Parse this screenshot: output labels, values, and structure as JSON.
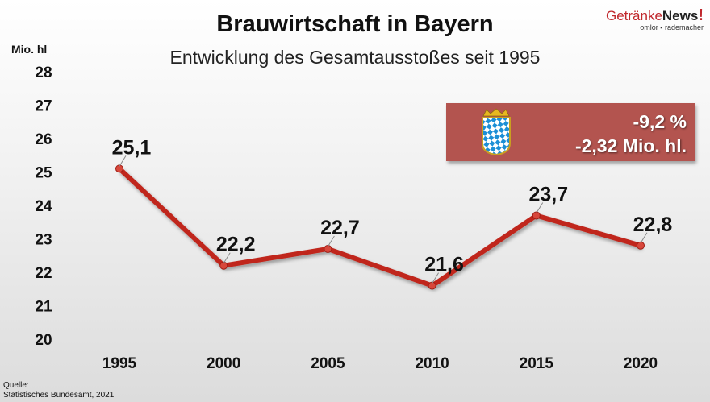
{
  "header": {
    "title": "Brauwirtschaft in Bayern",
    "subtitle": "Entwicklung des Gesamtausstoßes seit 1995"
  },
  "logo": {
    "brand_a": "Getränke",
    "brand_b": "News",
    "brand_c": "!",
    "tagline": "omlor ▪ rademacher"
  },
  "summary": {
    "percent": "-9,2 %",
    "absolute": "-2,32 Mio. hl.",
    "icon": "bavaria-coat-of-arms-icon",
    "color": "#b3544f"
  },
  "source": {
    "label": "Quelle:",
    "text": "Statistisches Bundesamt, 2021"
  },
  "chart_data": {
    "type": "line",
    "title": "Brauwirtschaft in Bayern",
    "subtitle": "Entwicklung des Gesamtausstoßes seit 1995",
    "ylabel": "Mio. hl",
    "categories": [
      "1995",
      "2000",
      "2005",
      "2010",
      "2015",
      "2020"
    ],
    "values": [
      25.1,
      22.2,
      22.7,
      21.6,
      23.7,
      22.8
    ],
    "data_labels": [
      "25,1",
      "22,2",
      "22,7",
      "21,6",
      "23,7",
      "22,8"
    ],
    "ylim": [
      20,
      28
    ],
    "yticks": [
      "20",
      "21",
      "22",
      "23",
      "24",
      "25",
      "26",
      "27",
      "28"
    ],
    "grid": false,
    "line_color": "#c0261c"
  }
}
